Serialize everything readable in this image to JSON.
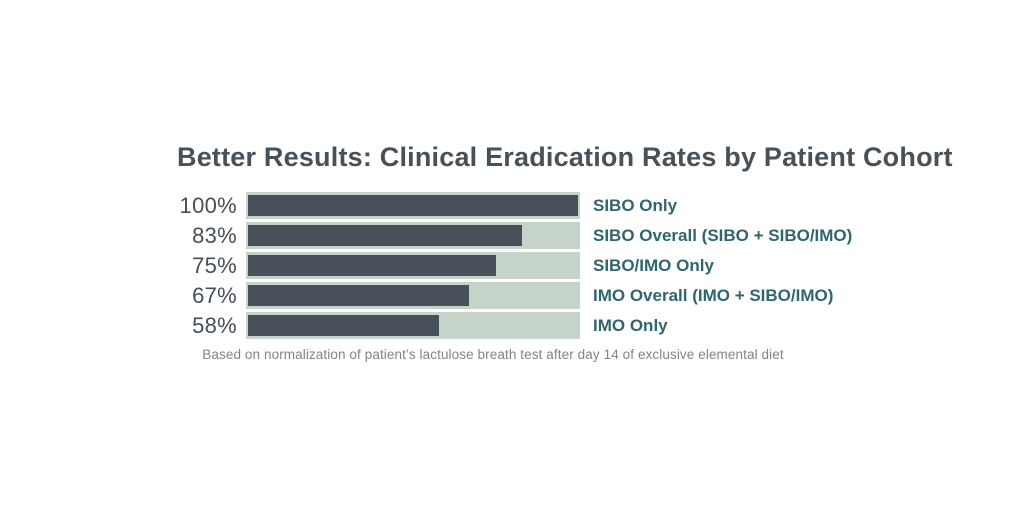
{
  "chart_data": {
    "type": "bar",
    "orientation": "horizontal",
    "title": "Better Results: Clinical Eradication Rates by Patient Cohort",
    "categories": [
      "SIBO Only",
      "SIBO Overall (SIBO + SIBO/IMO)",
      "SIBO/IMO Only",
      "IMO Overall (IMO + SIBO/IMO)",
      "IMO Only"
    ],
    "values": [
      100,
      83,
      75,
      67,
      58
    ],
    "value_labels": [
      "100%",
      "83%",
      "75%",
      "67%",
      "58%"
    ],
    "xlim": [
      0,
      100
    ],
    "grid": false,
    "legend": "none",
    "footnote": "Based on normalization of patient’s lactulose breath test after day 14 of exclusive elemental diet",
    "colors": {
      "bar_fill": "#485159",
      "bar_track": "#c6d3c8",
      "category_label": "#2f666c",
      "title_text": "#47515a",
      "value_label": "#454f58",
      "footnote_text": "#7c858e",
      "background": "#ffffff"
    }
  }
}
